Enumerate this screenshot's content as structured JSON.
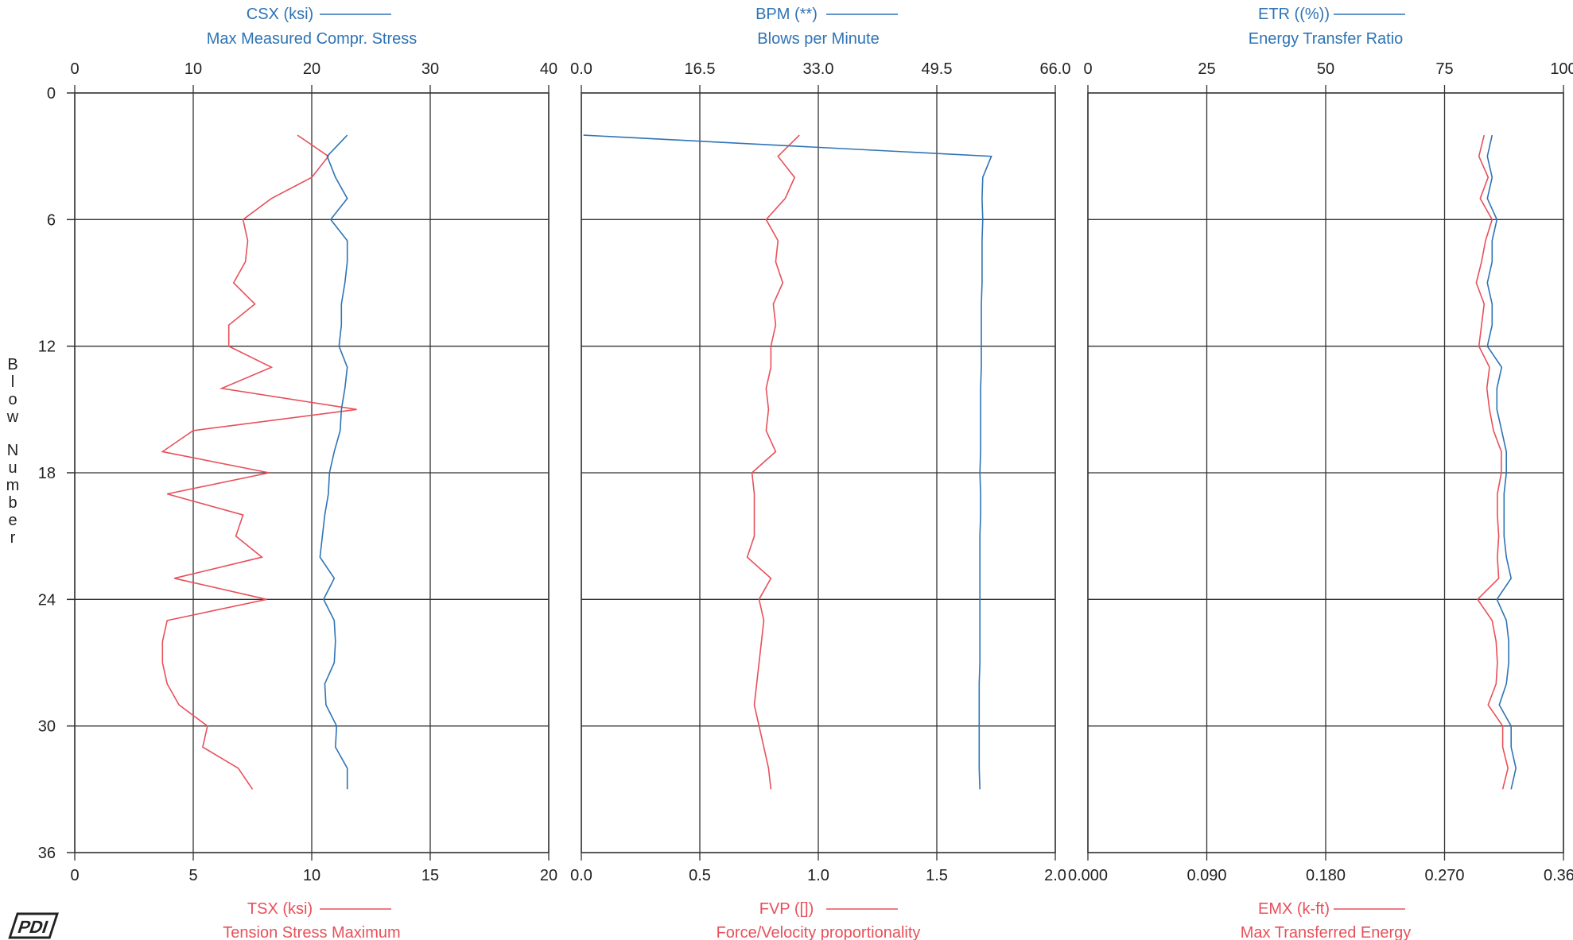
{
  "y_axis": {
    "label": "Blow Number",
    "ticks": [
      "0",
      "6",
      "12",
      "18",
      "24",
      "30",
      "36"
    ],
    "range": [
      0,
      36
    ]
  },
  "colors": {
    "top_series": "#2e74b5",
    "bottom_series": "#e8505a",
    "grid": "#333333"
  },
  "logo": "PDI",
  "chart_data": [
    {
      "type": "line",
      "top_title": "CSX (ksi)",
      "top_subtitle": "Max Measured Compr. Stress",
      "bottom_title": "TSX (ksi)",
      "bottom_subtitle": "Tension Stress Maximum",
      "top_ticks": [
        "0",
        "10",
        "20",
        "30",
        "40"
      ],
      "top_range": [
        0,
        40
      ],
      "bottom_ticks": [
        "0",
        "5",
        "10",
        "15",
        "20"
      ],
      "bottom_range": [
        0,
        20
      ],
      "blows": [
        2,
        3,
        4,
        5,
        6,
        7,
        8,
        9,
        10,
        11,
        12,
        13,
        14,
        15,
        16,
        17,
        18,
        19,
        20,
        21,
        22,
        23,
        24,
        25,
        26,
        27,
        28,
        29,
        30,
        31,
        32,
        33
      ],
      "top_values": [
        23.0,
        21.3,
        22.0,
        23.0,
        21.6,
        23.0,
        23.0,
        22.8,
        22.5,
        22.5,
        22.3,
        23.0,
        22.8,
        22.5,
        22.4,
        21.9,
        21.5,
        21.4,
        21.1,
        20.9,
        20.7,
        21.9,
        21.0,
        21.9,
        22.0,
        21.9,
        21.1,
        21.2,
        22.1,
        22.0,
        23.0,
        23.0
      ],
      "bottom_values": [
        9.4,
        10.7,
        10.0,
        8.3,
        7.1,
        7.3,
        7.2,
        6.7,
        7.6,
        6.5,
        6.5,
        8.3,
        6.2,
        11.9,
        5.0,
        3.7,
        8.2,
        3.9,
        7.1,
        6.8,
        7.9,
        4.2,
        8.1,
        3.9,
        3.7,
        3.7,
        3.9,
        4.4,
        5.6,
        5.4,
        6.9,
        7.5
      ]
    },
    {
      "type": "line",
      "top_title": "BPM (**)",
      "top_subtitle": "Blows per Minute",
      "bottom_title": "FVP ([])",
      "bottom_subtitle": "Force/Velocity proportionality",
      "top_ticks": [
        "0.0",
        "16.5",
        "33.0",
        "49.5",
        "66.0"
      ],
      "top_range": [
        0,
        66
      ],
      "bottom_ticks": [
        "0.0",
        "0.5",
        "1.0",
        "1.5",
        "2.0"
      ],
      "bottom_range": [
        0,
        2
      ],
      "blows": [
        2,
        3,
        4,
        5,
        6,
        7,
        8,
        9,
        10,
        11,
        12,
        13,
        14,
        15,
        16,
        17,
        18,
        19,
        20,
        21,
        22,
        23,
        24,
        25,
        26,
        27,
        28,
        29,
        30,
        31,
        32,
        33
      ],
      "top_values": [
        0.3,
        57.1,
        55.9,
        55.8,
        55.9,
        55.8,
        55.8,
        55.8,
        55.7,
        55.7,
        55.7,
        55.7,
        55.6,
        55.6,
        55.6,
        55.6,
        55.5,
        55.6,
        55.6,
        55.5,
        55.5,
        55.5,
        55.5,
        55.5,
        55.5,
        55.5,
        55.4,
        55.4,
        55.4,
        55.4,
        55.4,
        55.5
      ],
      "bottom_values": [
        0.92,
        0.83,
        0.9,
        0.86,
        0.78,
        0.83,
        0.82,
        0.85,
        0.81,
        0.82,
        0.8,
        0.8,
        0.78,
        0.79,
        0.78,
        0.82,
        0.72,
        0.73,
        0.73,
        0.73,
        0.7,
        0.8,
        0.75,
        0.77,
        0.76,
        0.75,
        0.74,
        0.73,
        0.75,
        0.77,
        0.79,
        0.8
      ]
    },
    {
      "type": "line",
      "top_title": "ETR ((%))",
      "top_subtitle": "Energy Transfer Ratio",
      "bottom_title": "EMX (k-ft)",
      "bottom_subtitle": "Max Transferred Energy",
      "top_ticks": [
        "0",
        "25",
        "50",
        "75",
        "100"
      ],
      "top_range": [
        0,
        100
      ],
      "bottom_ticks": [
        "0.000",
        "0.090",
        "0.180",
        "0.270",
        "0.360"
      ],
      "bottom_range": [
        0,
        0.36
      ],
      "blows": [
        2,
        3,
        4,
        5,
        6,
        7,
        8,
        9,
        10,
        11,
        12,
        13,
        14,
        15,
        16,
        17,
        18,
        19,
        20,
        21,
        22,
        23,
        24,
        25,
        26,
        27,
        28,
        29,
        30,
        31,
        32,
        33
      ],
      "top_values": [
        85.0,
        84.0,
        85.0,
        84.0,
        86.0,
        85.0,
        85.0,
        84.0,
        85.0,
        85.0,
        84.0,
        87.0,
        86.0,
        86.0,
        87.0,
        88.0,
        88.0,
        87.5,
        87.5,
        87.5,
        88.0,
        89.0,
        86.0,
        88.0,
        88.5,
        88.5,
        88.0,
        86.5,
        89.0,
        89.0,
        90.0,
        89.0
      ],
      "bottom_values": [
        0.3,
        0.296,
        0.303,
        0.297,
        0.306,
        0.301,
        0.298,
        0.294,
        0.3,
        0.298,
        0.296,
        0.304,
        0.302,
        0.304,
        0.307,
        0.313,
        0.313,
        0.31,
        0.31,
        0.311,
        0.31,
        0.311,
        0.295,
        0.306,
        0.309,
        0.31,
        0.309,
        0.303,
        0.314,
        0.314,
        0.318,
        0.314
      ]
    }
  ]
}
